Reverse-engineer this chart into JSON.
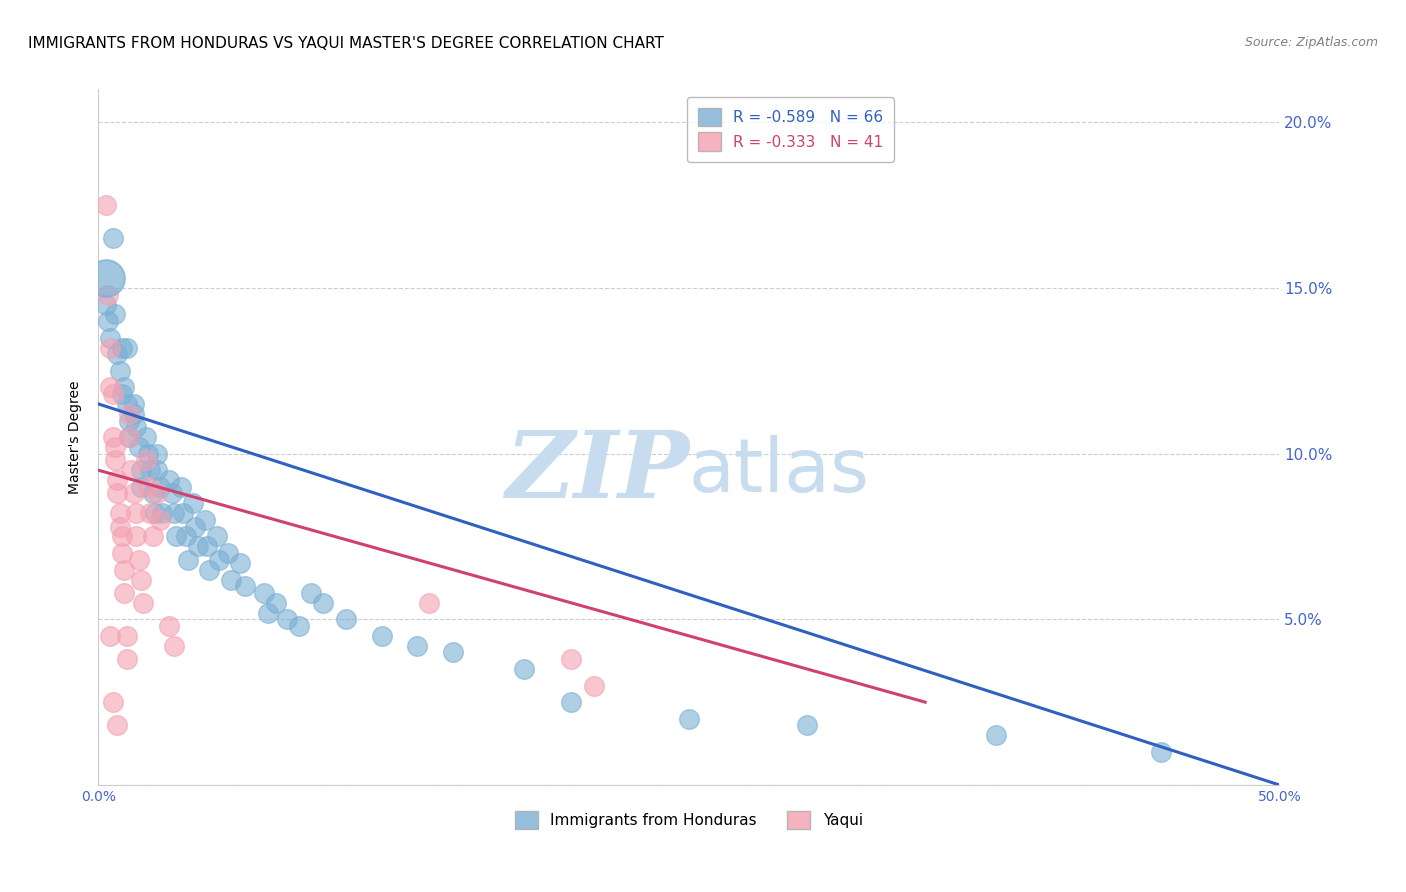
{
  "title": "IMMIGRANTS FROM HONDURAS VS YAQUI MASTER'S DEGREE CORRELATION CHART",
  "source": "Source: ZipAtlas.com",
  "ylabel": "Master's Degree",
  "right_yticklabels": [
    "",
    "5.0%",
    "10.0%",
    "15.0%",
    "20.0%"
  ],
  "right_ytick_vals": [
    0,
    5,
    10,
    15,
    20
  ],
  "xtick_vals": [
    0,
    10,
    20,
    30,
    40,
    50
  ],
  "xtick_labels": [
    "0.0%",
    "",
    "",
    "",
    "",
    "50.0%"
  ],
  "watermark_zip": "ZIP",
  "watermark_atlas": "atlas",
  "legend_blue": "R = -0.589   N = 66",
  "legend_pink": "R = -0.333   N = 41",
  "legend_label_blue": "Immigrants from Honduras",
  "legend_label_pink": "Yaqui",
  "blue_color": "#7BAFD4",
  "pink_color": "#F4A0B0",
  "line_blue": "#3060C0",
  "line_pink": "#D04070",
  "blue_scatter": [
    [
      0.3,
      14.5
    ],
    [
      0.4,
      14.0
    ],
    [
      0.5,
      13.5
    ],
    [
      0.6,
      16.5
    ],
    [
      0.7,
      14.2
    ],
    [
      0.8,
      13.0
    ],
    [
      0.9,
      12.5
    ],
    [
      1.0,
      11.8
    ],
    [
      1.0,
      13.2
    ],
    [
      1.1,
      12.0
    ],
    [
      1.2,
      11.5
    ],
    [
      1.2,
      13.2
    ],
    [
      1.3,
      11.0
    ],
    [
      1.3,
      10.5
    ],
    [
      1.5,
      11.5
    ],
    [
      1.5,
      11.2
    ],
    [
      1.6,
      10.8
    ],
    [
      1.7,
      10.2
    ],
    [
      1.8,
      9.5
    ],
    [
      1.8,
      9.0
    ],
    [
      2.0,
      10.5
    ],
    [
      2.1,
      10.0
    ],
    [
      2.2,
      9.5
    ],
    [
      2.3,
      8.8
    ],
    [
      2.4,
      8.2
    ],
    [
      2.5,
      10.0
    ],
    [
      2.5,
      9.5
    ],
    [
      2.6,
      9.0
    ],
    [
      2.7,
      8.2
    ],
    [
      3.0,
      9.2
    ],
    [
      3.1,
      8.8
    ],
    [
      3.2,
      8.2
    ],
    [
      3.3,
      7.5
    ],
    [
      3.5,
      9.0
    ],
    [
      3.6,
      8.2
    ],
    [
      3.7,
      7.5
    ],
    [
      3.8,
      6.8
    ],
    [
      4.0,
      8.5
    ],
    [
      4.1,
      7.8
    ],
    [
      4.2,
      7.2
    ],
    [
      4.5,
      8.0
    ],
    [
      4.6,
      7.2
    ],
    [
      4.7,
      6.5
    ],
    [
      5.0,
      7.5
    ],
    [
      5.1,
      6.8
    ],
    [
      5.5,
      7.0
    ],
    [
      5.6,
      6.2
    ],
    [
      6.0,
      6.7
    ],
    [
      6.2,
      6.0
    ],
    [
      7.0,
      5.8
    ],
    [
      7.2,
      5.2
    ],
    [
      7.5,
      5.5
    ],
    [
      8.0,
      5.0
    ],
    [
      8.5,
      4.8
    ],
    [
      9.0,
      5.8
    ],
    [
      9.5,
      5.5
    ],
    [
      10.5,
      5.0
    ],
    [
      12.0,
      4.5
    ],
    [
      13.5,
      4.2
    ],
    [
      15.0,
      4.0
    ],
    [
      18.0,
      3.5
    ],
    [
      20.0,
      2.5
    ],
    [
      25.0,
      2.0
    ],
    [
      30.0,
      1.8
    ],
    [
      38.0,
      1.5
    ],
    [
      45.0,
      1.0
    ]
  ],
  "pink_scatter": [
    [
      0.3,
      17.5
    ],
    [
      0.4,
      14.8
    ],
    [
      0.5,
      13.2
    ],
    [
      0.5,
      12.0
    ],
    [
      0.6,
      11.8
    ],
    [
      0.6,
      10.5
    ],
    [
      0.7,
      10.2
    ],
    [
      0.7,
      9.8
    ],
    [
      0.8,
      9.2
    ],
    [
      0.8,
      8.8
    ],
    [
      0.9,
      8.2
    ],
    [
      0.9,
      7.8
    ],
    [
      1.0,
      7.5
    ],
    [
      1.0,
      7.0
    ],
    [
      1.1,
      6.5
    ],
    [
      1.1,
      5.8
    ],
    [
      1.2,
      4.5
    ],
    [
      1.2,
      3.8
    ],
    [
      1.3,
      11.2
    ],
    [
      1.3,
      10.5
    ],
    [
      1.4,
      9.5
    ],
    [
      1.5,
      8.8
    ],
    [
      1.6,
      8.2
    ],
    [
      1.6,
      7.5
    ],
    [
      1.7,
      6.8
    ],
    [
      1.8,
      6.2
    ],
    [
      1.9,
      5.5
    ],
    [
      2.0,
      9.8
    ],
    [
      2.1,
      9.0
    ],
    [
      2.2,
      8.2
    ],
    [
      2.3,
      7.5
    ],
    [
      2.5,
      8.8
    ],
    [
      2.6,
      8.0
    ],
    [
      3.0,
      4.8
    ],
    [
      3.2,
      4.2
    ],
    [
      14.0,
      5.5
    ],
    [
      20.0,
      3.8
    ],
    [
      21.0,
      3.0
    ],
    [
      0.5,
      4.5
    ],
    [
      0.6,
      2.5
    ],
    [
      0.8,
      1.8
    ]
  ],
  "blue_line_x": [
    0,
    50
  ],
  "blue_line_y": [
    11.5,
    0.0
  ],
  "pink_line_x": [
    0,
    35
  ],
  "pink_line_y": [
    9.5,
    2.5
  ],
  "xlim": [
    0,
    50
  ],
  "ylim": [
    0,
    21
  ],
  "title_fontsize": 11,
  "source_fontsize": 9,
  "axis_label_color": "#4466CC",
  "tick_color": "#4466CC",
  "grid_color": "#CCCCDD",
  "watermark_color": "#C8DCF0",
  "big_dot_x": 0.3,
  "big_dot_y": 15.3
}
